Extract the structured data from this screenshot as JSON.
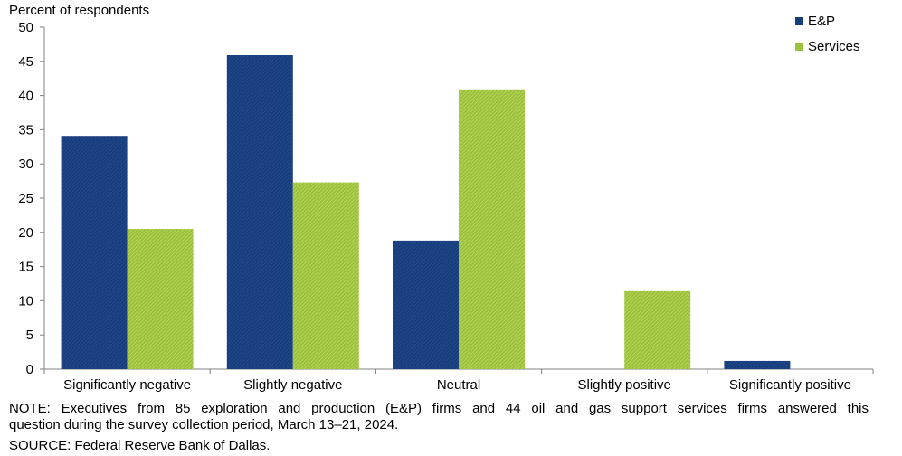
{
  "chart_data": {
    "type": "bar",
    "ylabel": "Percent of respondents",
    "ylim": [
      0,
      50
    ],
    "yticks": [
      0,
      5,
      10,
      15,
      20,
      25,
      30,
      35,
      40,
      45,
      50
    ],
    "categories": [
      "Significantly negative",
      "Slightly negative",
      "Neutral",
      "Slightly positive",
      "Significantly positive"
    ],
    "series": [
      {
        "name": "E&P",
        "color": "#173d7a",
        "values": [
          34.1,
          45.9,
          18.8,
          0,
          1.2
        ]
      },
      {
        "name": "Services",
        "color": "#9cc13b",
        "values": [
          20.5,
          27.3,
          40.9,
          11.4,
          0
        ]
      }
    ],
    "legend": "top-right",
    "grid": false
  },
  "footnotes": {
    "note_line1": "NOTE: Executives from 85 exploration and production (E&P) firms and 44 oil and gas support services firms answered this",
    "note_line2": "question during the survey collection period, March 13–21, 2024.",
    "source": "SOURCE: Federal Reserve Bank of Dallas."
  }
}
